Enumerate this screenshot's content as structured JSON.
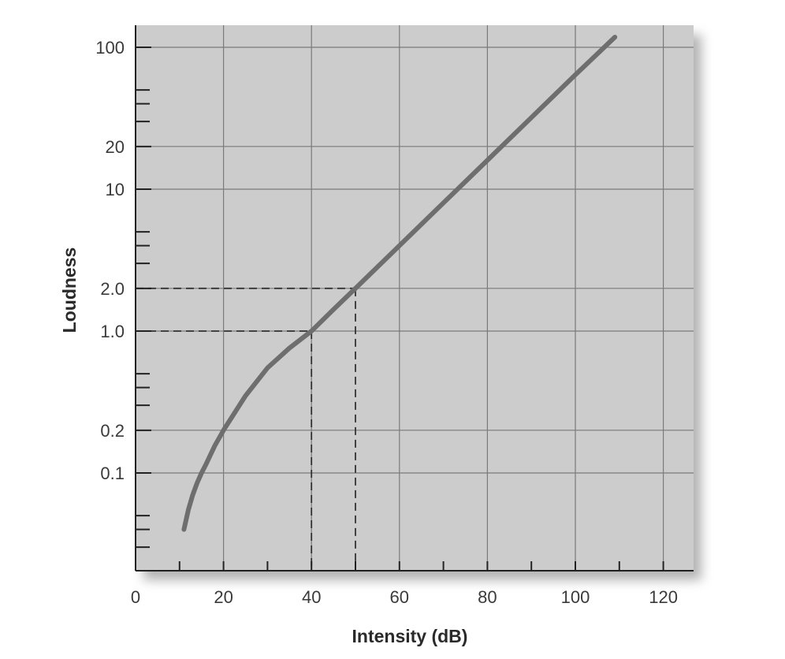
{
  "chart_data": {
    "type": "line",
    "title": "",
    "xlabel": "Intensity (dB)",
    "ylabel": "Loudness",
    "xlim": [
      0,
      126
    ],
    "ylim": [
      0.02,
      130
    ],
    "y_scale": "log",
    "grid": true,
    "x_ticks": [
      {
        "value": 0,
        "label": "0"
      },
      {
        "value": 20,
        "label": "20"
      },
      {
        "value": 40,
        "label": "40"
      },
      {
        "value": 60,
        "label": "60"
      },
      {
        "value": 80,
        "label": "80"
      },
      {
        "value": 100,
        "label": "100"
      },
      {
        "value": 120,
        "label": "120"
      }
    ],
    "x_minor_ticks": [
      10,
      30,
      50,
      70,
      90,
      110
    ],
    "y_ticks": [
      {
        "value": 0.1,
        "label": "0.1"
      },
      {
        "value": 0.2,
        "label": "0.2"
      },
      {
        "value": 1,
        "label": "1.0"
      },
      {
        "value": 2,
        "label": "2.0"
      },
      {
        "value": 10,
        "label": "10"
      },
      {
        "value": 20,
        "label": "20"
      },
      {
        "value": 100,
        "label": "100"
      }
    ],
    "y_minor_ticks": [
      0.03,
      0.04,
      0.05,
      0.3,
      0.4,
      0.5,
      3,
      4,
      5,
      30,
      40,
      50
    ],
    "series": [
      {
        "x": [
          11,
          12,
          13,
          14,
          15,
          16,
          18,
          20,
          25,
          30,
          35,
          40,
          45,
          50,
          60,
          70,
          80,
          90,
          100,
          109
        ],
        "y": [
          0.04,
          0.055,
          0.07,
          0.085,
          0.1,
          0.115,
          0.155,
          0.2,
          0.35,
          0.55,
          0.76,
          1.0,
          1.42,
          2.0,
          4.0,
          8.0,
          16.0,
          32.0,
          64.0,
          118.0
        ]
      }
    ],
    "reference_lines": [
      {
        "x": 40,
        "y": 1.0
      },
      {
        "x": 50,
        "y": 2.0
      }
    ],
    "colors": {
      "plot_background": "#cccccc",
      "curve": "#6e6e6e",
      "grid": "#7a7a7a",
      "axis": "#222222",
      "reference": "#333333"
    }
  }
}
